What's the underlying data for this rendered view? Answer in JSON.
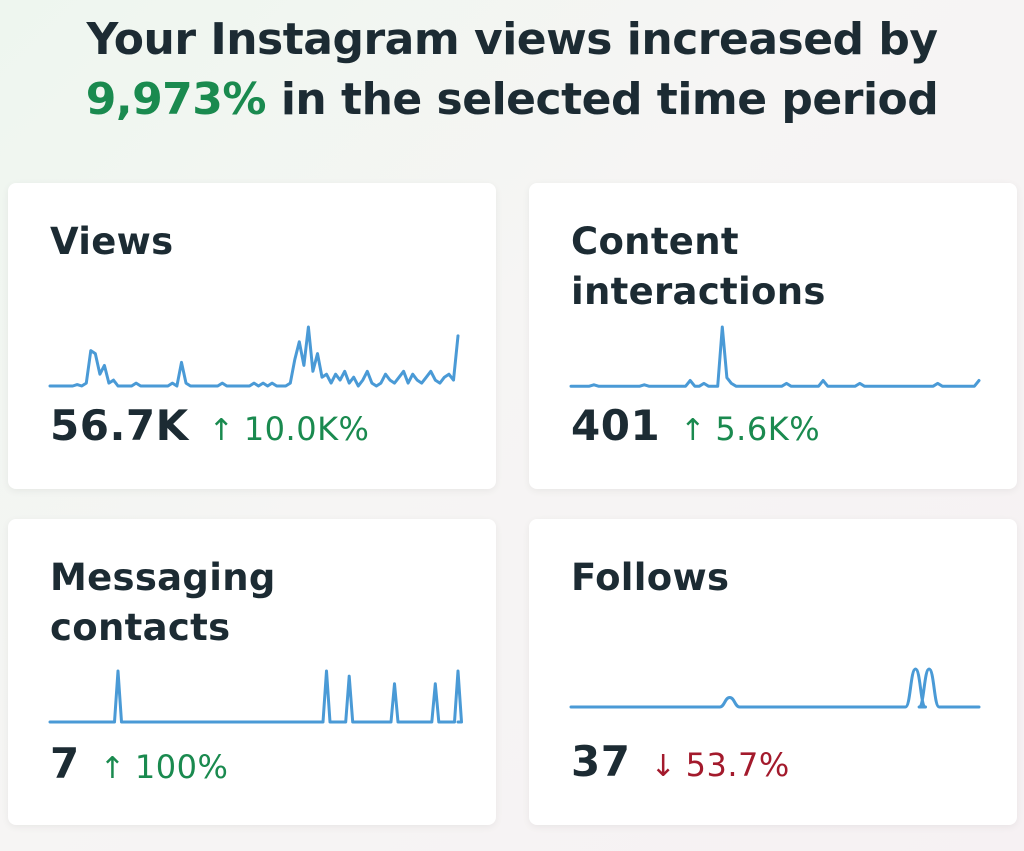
{
  "headline": {
    "line1": "Your Instagram views increased by",
    "percent": "9,973%",
    "line2_rest": " in the selected time period"
  },
  "colors": {
    "accent": "#1a8a4f",
    "negative": "#a31a2c",
    "line": "#4a9ad6"
  },
  "cards": [
    {
      "title": "Views",
      "value": "56.7K",
      "arrow": "↑",
      "change": "10.0K%",
      "trend": "up",
      "series": [
        1,
        1,
        1,
        1,
        1,
        1,
        1.5,
        1,
        2,
        13,
        12,
        5,
        8,
        2,
        3,
        1,
        1,
        1,
        1,
        2,
        1,
        1,
        1,
        1,
        1,
        1,
        1,
        2,
        1,
        9,
        2,
        1,
        1,
        1,
        1,
        1,
        1,
        1,
        2,
        1,
        1,
        1,
        1,
        1,
        1,
        2,
        1,
        2,
        1,
        2,
        1,
        1,
        1,
        2,
        10,
        16,
        8,
        21,
        6,
        12,
        4,
        5,
        2,
        5,
        3,
        6,
        2,
        4,
        1,
        3,
        6,
        2,
        1,
        2,
        5,
        3,
        2,
        4,
        6,
        2,
        5,
        3,
        2,
        4,
        6,
        3,
        2,
        4,
        5,
        3,
        18
      ]
    },
    {
      "title": "Content interactions",
      "value": "401",
      "arrow": "↑",
      "change": "5.6K%",
      "trend": "up",
      "series": [
        1,
        1,
        1,
        1,
        1,
        1.5,
        1,
        1,
        1,
        1,
        1,
        1,
        1,
        1,
        1,
        1,
        1.5,
        1,
        1,
        1,
        1,
        1,
        1,
        1,
        1,
        1,
        3,
        1,
        1,
        2,
        1,
        1,
        1,
        22,
        4,
        2,
        1,
        1,
        1,
        1,
        1,
        1,
        1,
        1,
        1,
        1,
        1,
        2,
        1,
        1,
        1,
        1,
        1,
        1,
        1,
        3,
        1,
        1,
        1,
        1,
        1,
        1,
        1,
        2,
        1,
        1,
        1,
        1,
        1,
        1,
        1,
        1,
        1,
        1,
        1,
        1,
        1,
        1,
        1,
        1,
        2,
        1,
        1,
        1,
        1,
        1,
        1,
        1,
        1,
        3
      ]
    },
    {
      "title": "Messaging contacts",
      "value": "7",
      "arrow": "↑",
      "change": "100%",
      "trend": "up",
      "series": [
        0,
        0,
        0,
        0,
        0,
        0,
        0,
        0,
        0,
        0,
        0,
        0,
        0,
        0,
        0,
        0,
        0,
        0,
        0,
        0,
        0,
        0,
        0,
        0,
        0,
        0,
        0,
        0,
        0,
        0,
        0,
        0,
        0,
        0,
        0,
        0,
        0,
        0,
        0,
        0,
        0,
        0,
        0,
        0,
        0,
        0,
        0,
        0,
        0,
        0,
        0,
        0,
        0,
        0,
        0,
        0,
        0,
        0,
        0,
        0,
        0,
        0,
        0,
        0,
        0,
        0,
        0,
        0,
        0,
        0,
        0,
        0,
        0,
        0,
        0,
        0,
        0,
        0,
        0,
        0,
        0,
        0,
        0,
        0,
        0,
        0,
        0,
        0,
        0,
        0,
        0
      ]
    },
    {
      "title": "Follows",
      "value": "37",
      "arrow": "↓",
      "change": "53.7%",
      "trend": "down",
      "series": [
        0,
        0,
        0,
        0,
        0,
        0,
        0,
        0,
        0,
        0,
        0,
        0,
        0,
        0,
        0,
        0,
        0,
        0,
        0,
        0,
        0,
        0,
        0,
        0,
        0,
        0,
        0,
        0,
        0,
        0,
        0,
        0,
        0,
        0,
        0,
        0,
        0,
        0,
        0,
        0,
        0,
        0,
        0,
        0,
        0,
        0,
        0,
        0,
        0,
        0,
        0,
        0,
        0,
        0,
        0,
        0,
        0,
        0,
        0,
        0,
        0,
        0,
        0,
        0,
        0,
        0,
        0,
        0,
        0,
        0,
        0,
        0,
        0,
        0,
        0,
        0,
        0,
        0,
        0,
        0,
        0,
        0,
        0,
        0,
        0,
        0,
        0,
        0,
        0,
        0,
        0
      ]
    }
  ],
  "spikes": {
    "messaging": [
      [
        15,
        1
      ],
      [
        61,
        1
      ],
      [
        66,
        0.9
      ],
      [
        76,
        0.75
      ],
      [
        85,
        0.75
      ],
      [
        90,
        1
      ]
    ],
    "follows": [
      [
        35,
        0.25
      ],
      [
        76,
        1
      ],
      [
        79,
        1
      ]
    ]
  }
}
